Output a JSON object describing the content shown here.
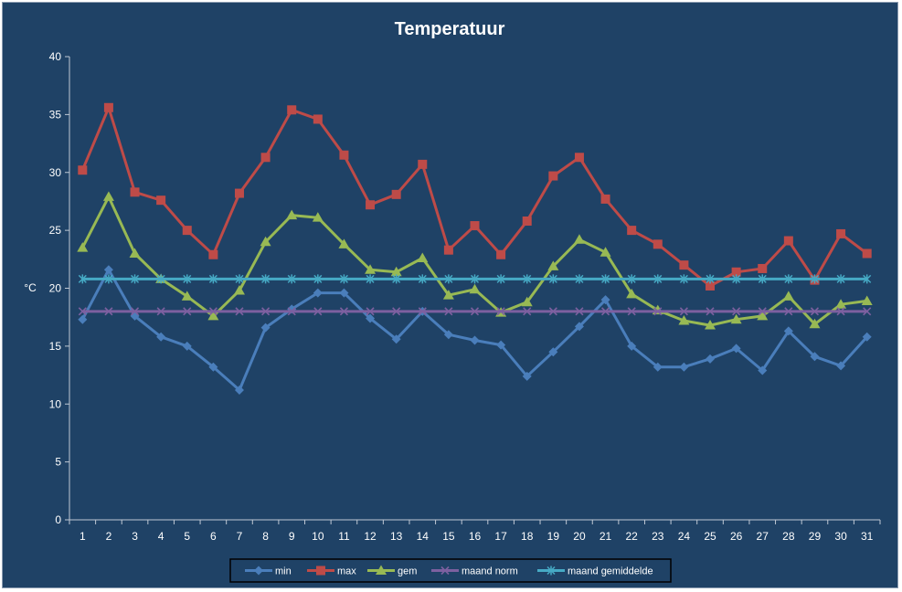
{
  "chart_data": {
    "type": "line",
    "title": "Temperatuur",
    "ylabel": "°C",
    "xlabel": "",
    "ylim": [
      0,
      40
    ],
    "y_ticks": [
      0,
      5,
      10,
      15,
      20,
      25,
      30,
      35,
      40
    ],
    "grid": false,
    "legend_position": "bottom",
    "categories": [
      "1",
      "2",
      "3",
      "4",
      "5",
      "6",
      "7",
      "8",
      "9",
      "10",
      "11",
      "12",
      "13",
      "14",
      "15",
      "16",
      "17",
      "18",
      "19",
      "20",
      "21",
      "22",
      "23",
      "24",
      "25",
      "26",
      "27",
      "28",
      "29",
      "30",
      "31"
    ],
    "series": [
      {
        "name": "min",
        "color": "#4a7ebb",
        "marker": "diamond",
        "values": [
          17.3,
          21.6,
          17.6,
          15.8,
          15.0,
          13.2,
          11.2,
          16.6,
          18.2,
          19.6,
          19.6,
          17.4,
          15.6,
          18.0,
          16.0,
          15.5,
          15.1,
          12.4,
          14.5,
          16.7,
          19.0,
          15.0,
          13.2,
          13.2,
          13.9,
          14.8,
          12.9,
          16.3,
          14.1,
          13.3,
          15.8
        ]
      },
      {
        "name": "max",
        "color": "#be4b48",
        "marker": "square",
        "values": [
          30.2,
          35.6,
          28.3,
          27.6,
          25.0,
          22.9,
          28.2,
          31.3,
          35.4,
          34.6,
          31.5,
          27.2,
          28.1,
          30.7,
          23.3,
          25.4,
          22.9,
          25.8,
          29.7,
          31.3,
          27.7,
          25.0,
          23.8,
          22.0,
          20.2,
          21.4,
          21.7,
          24.1,
          20.7,
          24.7,
          23.0
        ]
      },
      {
        "name": "gem",
        "color": "#98b954",
        "marker": "triangle",
        "values": [
          23.5,
          27.9,
          23.0,
          20.8,
          19.3,
          17.6,
          19.8,
          24.0,
          26.3,
          26.1,
          23.8,
          21.6,
          21.4,
          22.6,
          19.4,
          19.9,
          17.9,
          18.8,
          21.9,
          24.2,
          23.1,
          19.5,
          18.1,
          17.2,
          16.8,
          17.3,
          17.6,
          19.3,
          16.9,
          18.6,
          18.9
        ]
      },
      {
        "name": "maand norm",
        "color": "#7d60a0",
        "marker": "x",
        "values": [
          18.0,
          18.0,
          18.0,
          18.0,
          18.0,
          18.0,
          18.0,
          18.0,
          18.0,
          18.0,
          18.0,
          18.0,
          18.0,
          18.0,
          18.0,
          18.0,
          18.0,
          18.0,
          18.0,
          18.0,
          18.0,
          18.0,
          18.0,
          18.0,
          18.0,
          18.0,
          18.0,
          18.0,
          18.0,
          18.0,
          18.0
        ]
      },
      {
        "name": "maand gemiddelde",
        "color": "#46aac5",
        "marker": "star",
        "values": [
          20.8,
          20.8,
          20.8,
          20.8,
          20.8,
          20.8,
          20.8,
          20.8,
          20.8,
          20.8,
          20.8,
          20.8,
          20.8,
          20.8,
          20.8,
          20.8,
          20.8,
          20.8,
          20.8,
          20.8,
          20.8,
          20.8,
          20.8,
          20.8,
          20.8,
          20.8,
          20.8,
          20.8,
          20.8,
          20.8,
          20.8
        ]
      }
    ]
  }
}
